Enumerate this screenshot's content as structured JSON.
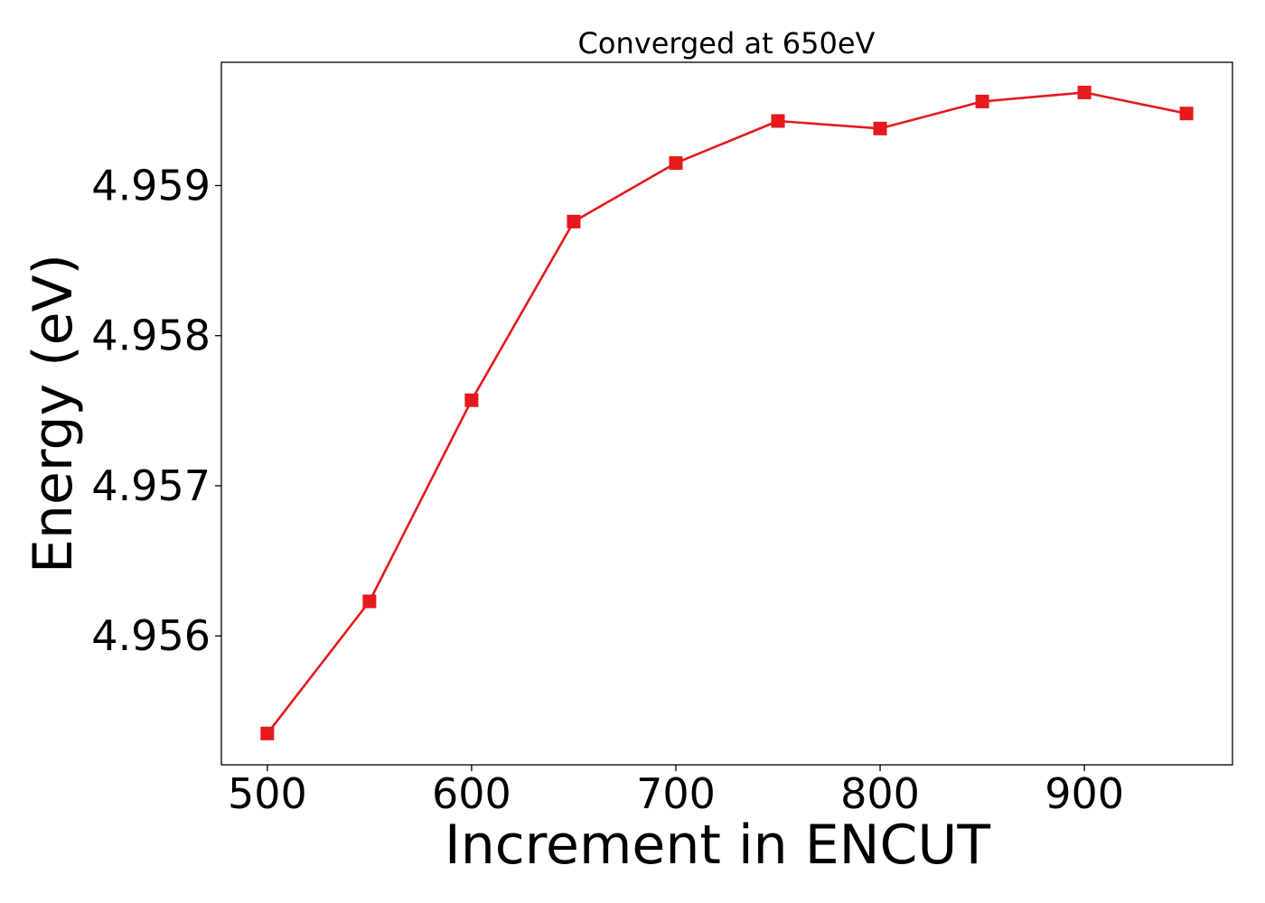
{
  "chart_data": {
    "type": "line",
    "title": "Converged at 650eV",
    "xlabel": "Increment in ENCUT",
    "ylabel": "Energy (eV)",
    "x": [
      500,
      550,
      600,
      650,
      700,
      750,
      800,
      850,
      900,
      950
    ],
    "series": [
      {
        "values": [
          4.95535,
          4.95623,
          4.95757,
          4.95876,
          4.95915,
          4.95943,
          4.95938,
          4.95956,
          4.95962,
          4.95948
        ],
        "color": "#e41a1c",
        "marker": "square"
      }
    ],
    "xlim": [
      477.5,
      972.5
    ],
    "ylim": [
      4.955141,
      4.959821
    ],
    "xticks": [
      500,
      600,
      700,
      800,
      900
    ],
    "xtick_labels": [
      "500",
      "600",
      "700",
      "800",
      "900"
    ],
    "yticks": [
      4.956,
      4.957,
      4.958,
      4.959
    ],
    "ytick_labels": [
      "4.956",
      "4.957",
      "4.958",
      "4.959"
    ],
    "grid": false,
    "legend": false
  }
}
